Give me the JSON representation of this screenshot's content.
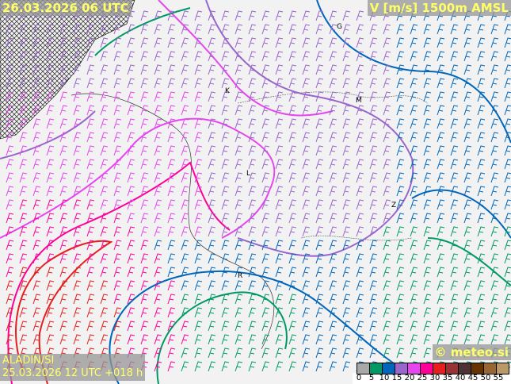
{
  "header": {
    "valid_time": "26.03.2026 06 UTC",
    "parameter": "V [m/s] 1500m AMSL"
  },
  "footer": {
    "model": "ALADIN/SI",
    "run": "25.03.2026 12 UTC +018 h",
    "brand": "© meteo.si"
  },
  "legend": {
    "ticks": [
      "0",
      "5",
      "10",
      "15",
      "20",
      "25",
      "30",
      "35",
      "40",
      "45",
      "50",
      "55"
    ],
    "colors": [
      "#a8a8a8",
      "#009966",
      "#0066bb",
      "#9966cc",
      "#e645f0",
      "#ff0099",
      "#e61e1e",
      "#993333",
      "#4d3333",
      "#663300",
      "#996633",
      "#bb9966"
    ]
  },
  "cities": [
    {
      "label": "G"
    },
    {
      "label": "M"
    },
    {
      "label": "K"
    },
    {
      "label": "L"
    },
    {
      "label": "Z"
    },
    {
      "label": "R"
    }
  ]
}
